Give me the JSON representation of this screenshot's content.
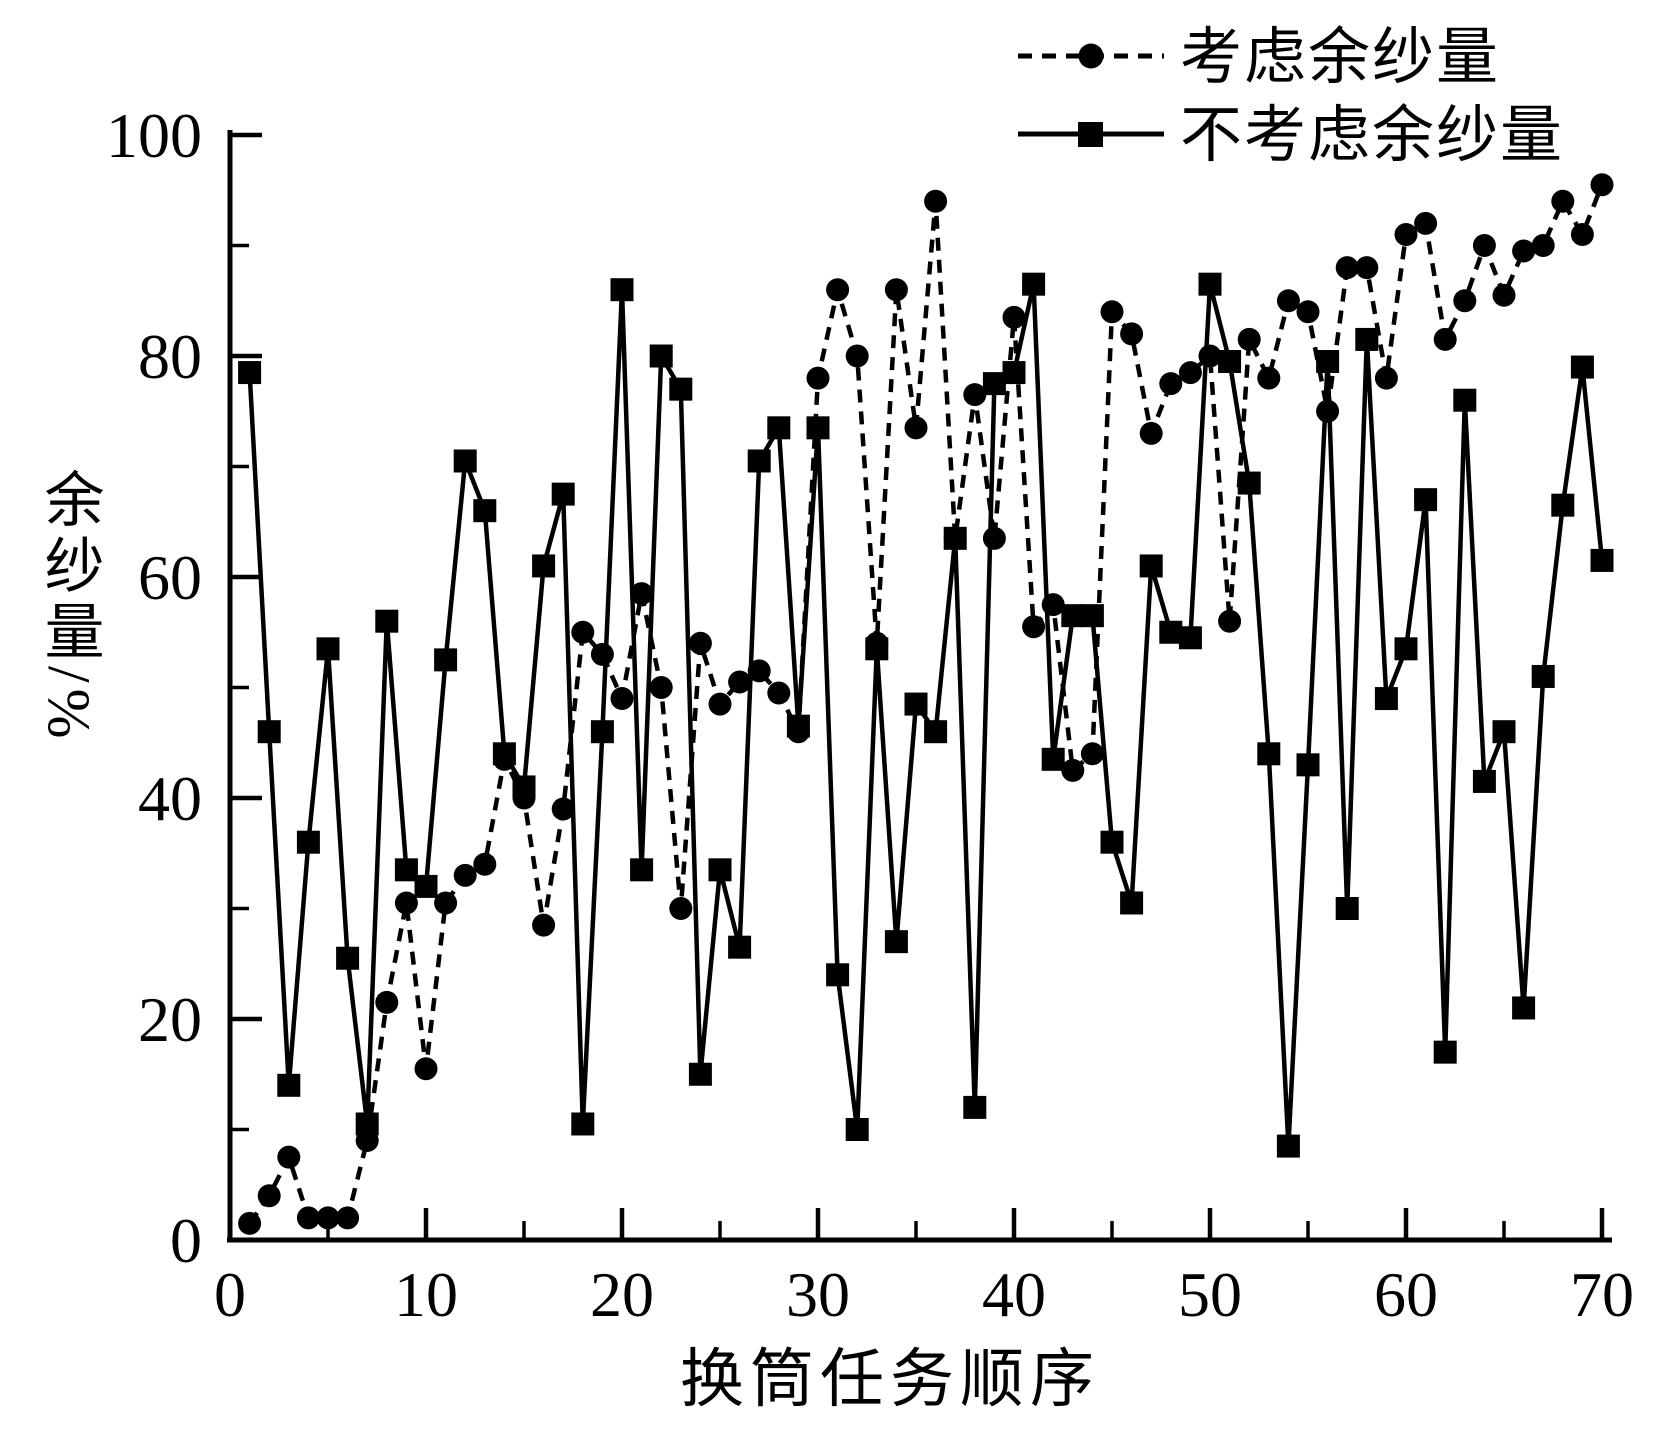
{
  "legend": {
    "items": [
      {
        "label": "考虑余纱量",
        "marker": "circle",
        "line_style": "dashed"
      },
      {
        "label": "不考虑余纱量",
        "marker": "square",
        "line_style": "solid"
      }
    ]
  },
  "axis_titles": {
    "y": "余纱量/%",
    "x": "换筒任务顺序"
  },
  "colors": {
    "foreground": "#000000",
    "background": "#ffffff"
  },
  "chart_data": {
    "type": "line",
    "title": "",
    "xlabel": "换筒任务顺序",
    "ylabel": "余纱量/%",
    "xlim": [
      0,
      70
    ],
    "ylim": [
      0,
      100
    ],
    "grid": false,
    "legend_position": "top-right",
    "x_ticks_major": [
      0,
      10,
      20,
      30,
      40,
      50,
      60,
      70
    ],
    "x_ticks_minor": [
      5,
      15,
      25,
      35,
      45,
      55,
      65
    ],
    "y_ticks_major": [
      0,
      20,
      40,
      60,
      80,
      100
    ],
    "y_ticks_minor": [
      10,
      30,
      50,
      70,
      90
    ],
    "x": [
      1,
      2,
      3,
      4,
      5,
      6,
      7,
      8,
      9,
      10,
      11,
      12,
      13,
      14,
      15,
      16,
      17,
      18,
      19,
      20,
      21,
      22,
      23,
      24,
      25,
      26,
      27,
      28,
      29,
      30,
      31,
      32,
      33,
      34,
      35,
      36,
      37,
      38,
      39,
      40,
      41,
      42,
      43,
      44,
      45,
      46,
      47,
      48,
      49,
      50,
      51,
      52,
      53,
      54,
      55,
      56,
      57,
      58,
      59,
      60,
      61,
      62,
      63,
      64,
      65,
      66,
      67,
      68,
      69,
      70
    ],
    "series": [
      {
        "name": "考虑余纱量",
        "marker": "circle",
        "line_style": "dashed",
        "color": "#000000",
        "values": [
          1.5,
          4,
          7.5,
          2,
          2,
          2,
          9,
          21.5,
          30.5,
          15.5,
          30.5,
          33,
          34,
          43.5,
          40,
          28.5,
          39,
          55,
          53,
          49,
          58.5,
          50,
          30,
          54,
          48.5,
          50.5,
          51.5,
          49.5,
          46,
          78,
          86,
          80,
          54,
          86,
          73.5,
          94,
          63.5,
          76.5,
          63.5,
          83.5,
          55.5,
          57.5,
          42.5,
          44,
          84,
          82,
          73,
          77.5,
          78.5,
          80,
          56,
          81.5,
          78,
          85,
          84,
          75,
          88,
          88,
          78,
          91,
          92,
          81.5,
          85,
          90,
          85.5,
          89.5,
          90,
          94,
          91,
          95.5
        ]
      },
      {
        "name": "不考虑余纱量",
        "marker": "square",
        "line_style": "solid",
        "color": "#000000",
        "values": [
          78.5,
          46,
          14,
          36,
          53.5,
          25.5,
          10.5,
          56,
          33.5,
          32,
          52.5,
          70.5,
          66,
          44,
          41,
          61,
          67.5,
          10.5,
          46,
          86,
          33.5,
          80,
          77,
          15,
          33.5,
          26.5,
          70.5,
          73.5,
          46.5,
          73.5,
          24,
          10,
          53.5,
          27,
          48.5,
          46,
          63.5,
          12,
          77.5,
          78.5,
          86.5,
          43.5,
          56.5,
          56.5,
          36,
          30.5,
          61,
          55,
          54.5,
          86.5,
          79.5,
          68.5,
          44,
          8.5,
          43,
          79.5,
          30,
          81.5,
          49,
          53.5,
          67,
          17,
          76,
          41.5,
          46,
          21,
          51,
          66.5,
          79,
          61.5
        ]
      }
    ]
  }
}
